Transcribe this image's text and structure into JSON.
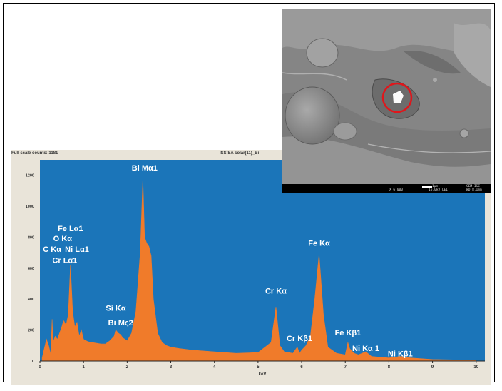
{
  "header": {
    "left": "Full scale counts: 1181",
    "right": "ISS SA solar(11)_Bi"
  },
  "sem": {
    "mag": "X 6,000",
    "kv": "15.0kV LEI",
    "scale": "1µm",
    "wd": "WD 8.1mm",
    "id": "SEM-ISC",
    "marker_color": "#e0161b"
  },
  "colors": {
    "plot_bg": "#1b75b9",
    "spectrum": "#f07b2a",
    "panel_bg": "#e9e4d9"
  },
  "chart_data": {
    "type": "area",
    "xlabel": "keV",
    "ylabel": "",
    "xlim": [
      0,
      10.2
    ],
    "ylim": [
      0,
      1300
    ],
    "x_ticks": [
      0,
      1,
      2,
      3,
      4,
      5,
      6,
      7,
      8,
      9,
      10
    ],
    "y_ticks": [
      0,
      200,
      400,
      600,
      800,
      1000,
      1200
    ],
    "series": [
      {
        "x": [
          0.05,
          0.15,
          0.2,
          0.25,
          0.28,
          0.3,
          0.35,
          0.4,
          0.45,
          0.5,
          0.52,
          0.55,
          0.6,
          0.65,
          0.7,
          0.75,
          0.8,
          0.85,
          0.9,
          0.95,
          1.0,
          1.1,
          1.2,
          1.3,
          1.4,
          1.5,
          1.6,
          1.7,
          1.74,
          1.8,
          1.85,
          1.9,
          2.0,
          2.1,
          2.2,
          2.3,
          2.36,
          2.4,
          2.45,
          2.5,
          2.55,
          2.6,
          2.7,
          2.8,
          2.9,
          3.0,
          3.2,
          3.5,
          4.0,
          4.5,
          5.0,
          5.3,
          5.41,
          5.5,
          5.6,
          5.8,
          5.9,
          5.95,
          6.0,
          6.1,
          6.2,
          6.3,
          6.4,
          6.5,
          6.6,
          6.8,
          7.0,
          7.06,
          7.1,
          7.2,
          7.3,
          7.47,
          7.6,
          8.0,
          8.26,
          8.5,
          9.0,
          9.5,
          10.0
        ],
        "values": [
          20,
          140,
          100,
          40,
          270,
          120,
          160,
          140,
          180,
          220,
          240,
          260,
          230,
          300,
          620,
          320,
          220,
          250,
          160,
          200,
          140,
          125,
          120,
          115,
          110,
          110,
          130,
          160,
          200,
          180,
          170,
          150,
          130,
          180,
          320,
          700,
          1180,
          800,
          760,
          740,
          680,
          400,
          180,
          120,
          100,
          90,
          80,
          70,
          60,
          50,
          55,
          120,
          350,
          100,
          60,
          50,
          90,
          50,
          70,
          100,
          160,
          400,
          690,
          300,
          90,
          50,
          40,
          120,
          80,
          50,
          40,
          60,
          30,
          20,
          30,
          20,
          10,
          8,
          5
        ]
      }
    ],
    "annotations": [
      {
        "text": "Bi Mα1",
        "x": 2.4,
        "y": 1230
      },
      {
        "text": "Fe Lα1",
        "x": 0.7,
        "y": 840
      },
      {
        "text": "O Kα",
        "x": 0.52,
        "y": 775
      },
      {
        "text": "C Kα",
        "x": 0.28,
        "y": 705
      },
      {
        "text": "Ni Lα1",
        "x": 0.85,
        "y": 705
      },
      {
        "text": "Cr Lα1",
        "x": 0.57,
        "y": 635
      },
      {
        "text": "Si Kα",
        "x": 1.74,
        "y": 325
      },
      {
        "text": "Bi Mς2",
        "x": 1.85,
        "y": 230
      },
      {
        "text": "Cr Kα",
        "x": 5.41,
        "y": 435
      },
      {
        "text": "Fe Kα",
        "x": 6.4,
        "y": 745
      },
      {
        "text": "Cr Kβ1",
        "x": 5.95,
        "y": 130
      },
      {
        "text": "Fe Kβ1",
        "x": 7.06,
        "y": 165
      },
      {
        "text": "Ni Kα 1",
        "x": 7.47,
        "y": 65
      },
      {
        "text": "Ni Kβ1",
        "x": 8.26,
        "y": 30
      }
    ]
  }
}
